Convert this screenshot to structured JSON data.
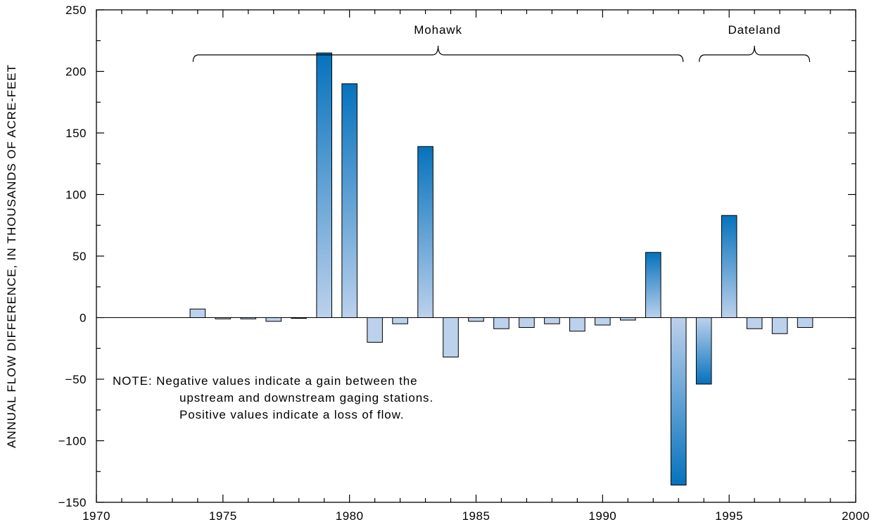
{
  "chart_data": {
    "type": "bar",
    "title": "",
    "xlabel": "",
    "ylabel": "ANNUAL FLOW DIFFERENCE, IN THOUSANDS OF ACRE-FEET",
    "xlim": [
      1970,
      2000
    ],
    "ylim": [
      -150,
      250
    ],
    "grid": false,
    "x_ticks": [
      1970,
      1975,
      1980,
      1985,
      1990,
      1995,
      2000
    ],
    "x_minor_step": 1,
    "y_ticks": [
      -150,
      -100,
      -50,
      0,
      50,
      100,
      150,
      200,
      250
    ],
    "y_minor_step": 25,
    "x": [
      1974,
      1975,
      1976,
      1977,
      1978,
      1979,
      1980,
      1981,
      1982,
      1983,
      1984,
      1985,
      1986,
      1987,
      1988,
      1989,
      1990,
      1991,
      1992,
      1993,
      1994,
      1995,
      1996,
      1997,
      1998
    ],
    "values": [
      7,
      -1,
      -1,
      -3,
      -0.5,
      215,
      190,
      -20,
      -5,
      139,
      -32,
      -3,
      -9,
      -8,
      -5,
      -11,
      -6,
      -2,
      53,
      -136,
      -54,
      83,
      -9,
      -13,
      -8
    ],
    "groups": [
      {
        "label": "Mohawk",
        "from": 1974,
        "to": 1993
      },
      {
        "label": "Dateland",
        "from": 1994,
        "to": 1998
      }
    ],
    "note_lines": [
      "NOTE:  Negative values indicate a gain between the",
      "upstream and downstream gaging stations.",
      "Positive values indicate a loss of flow."
    ],
    "colors": {
      "bar_light": "#bcd1ec",
      "bar_dark": "#0572bd",
      "bar_stroke": "#000000",
      "axis": "#000000"
    }
  }
}
